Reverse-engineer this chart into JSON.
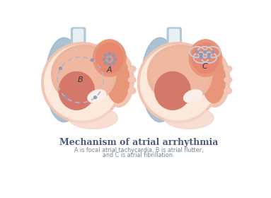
{
  "title": "Mechanism of atrial arrhythmia",
  "subtitle_line1": "A is focal atrial tachycardia, B is atrial flutter,",
  "subtitle_line2": "and C is atrial fibrillation.",
  "title_color": "#4a5a7a",
  "subtitle_color": "#7a8898",
  "bg_color": "#ffffff",
  "heart_outer": "#f2c4b2",
  "heart_mid": "#ebb5a0",
  "heart_inner_wall": "#fde8dc",
  "atrium_fill": "#e8967a",
  "ventricle_fill": "#d4796a",
  "vessel_blue": "#9bb8cc",
  "vessel_blue2": "#b0c8d8",
  "vessel_blue_dark": "#7aa0b8",
  "white_tissue": "#f8eeea",
  "peach_tissue": "#f5d5c8",
  "arrow_color": "#b0b8c8",
  "dot_color": "#9098b0",
  "loop_color": "#c8d0e0",
  "label_color": "#303848",
  "label_A": "A",
  "label_B": "B",
  "label_C": "C"
}
